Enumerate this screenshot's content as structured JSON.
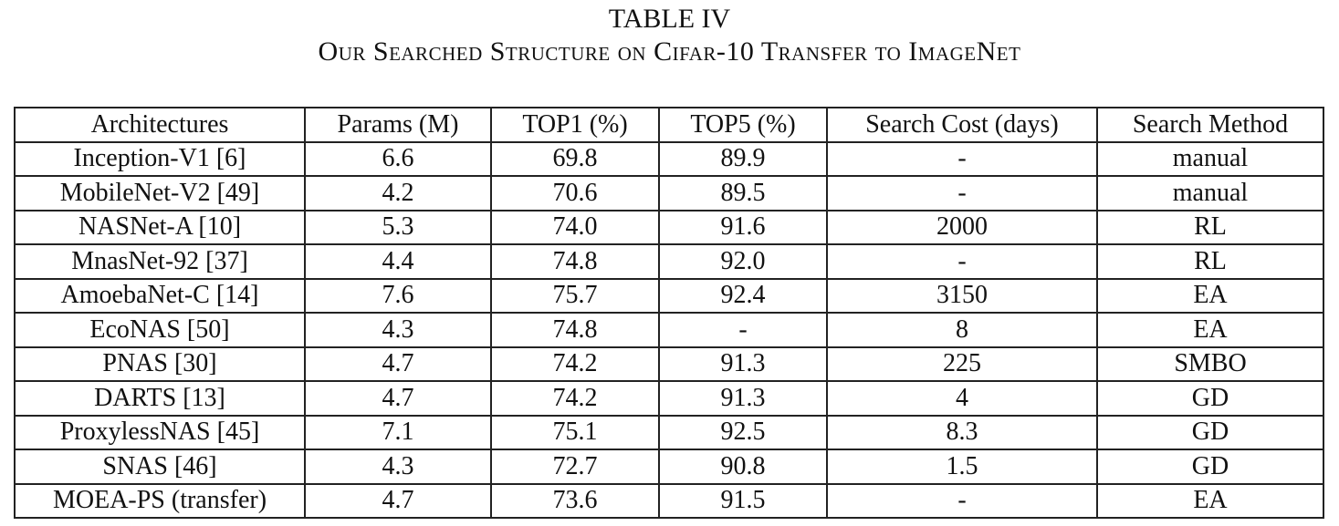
{
  "caption": {
    "label": "TABLE IV",
    "title": "Our Searched Structure on Cifar-10 Transfer to ImageNet"
  },
  "table": {
    "headers": [
      "Architectures",
      "Params (M)",
      "TOP1 (%)",
      "TOP5 (%)",
      "Search Cost (days)",
      "Search Method"
    ],
    "rows": [
      [
        "Inception-V1 [6]",
        "6.6",
        "69.8",
        "89.9",
        "-",
        "manual"
      ],
      [
        "MobileNet-V2 [49]",
        "4.2",
        "70.6",
        "89.5",
        "-",
        "manual"
      ],
      [
        "NASNet-A [10]",
        "5.3",
        "74.0",
        "91.6",
        "2000",
        "RL"
      ],
      [
        "MnasNet-92 [37]",
        "4.4",
        "74.8",
        "92.0",
        "-",
        "RL"
      ],
      [
        "AmoebaNet-C [14]",
        "7.6",
        "75.7",
        "92.4",
        "3150",
        "EA"
      ],
      [
        "EcoNAS [50]",
        "4.3",
        "74.8",
        "-",
        "8",
        "EA"
      ],
      [
        "PNAS [30]",
        "4.7",
        "74.2",
        "91.3",
        "225",
        "SMBO"
      ],
      [
        "DARTS [13]",
        "4.7",
        "74.2",
        "91.3",
        "4",
        "GD"
      ],
      [
        "ProxylessNAS [45]",
        "7.1",
        "75.1",
        "92.5",
        "8.3",
        "GD"
      ],
      [
        "SNAS [46]",
        "4.3",
        "72.7",
        "90.8",
        "1.5",
        "GD"
      ],
      [
        "MOEA-PS (transfer)",
        "4.7",
        "73.6",
        "91.5",
        "-",
        "EA"
      ]
    ]
  }
}
